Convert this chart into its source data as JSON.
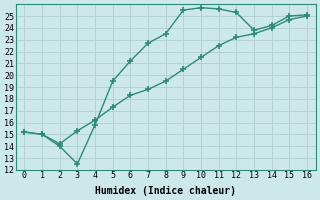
{
  "line1_x": [
    0,
    1,
    2,
    3,
    4,
    5,
    6,
    7,
    8,
    9,
    10,
    11,
    12,
    13,
    14,
    15,
    16
  ],
  "line1_y": [
    15.2,
    15.0,
    14.0,
    12.5,
    15.8,
    19.5,
    21.2,
    22.7,
    23.5,
    25.5,
    25.7,
    25.6,
    25.3,
    23.8,
    24.2,
    25.0,
    25.1
  ],
  "line2_x": [
    0,
    1,
    2,
    3,
    4,
    5,
    6,
    7,
    8,
    9,
    10,
    11,
    12,
    13,
    14,
    15,
    16
  ],
  "line2_y": [
    15.2,
    15.0,
    14.2,
    15.3,
    16.2,
    17.3,
    18.3,
    18.8,
    19.5,
    20.5,
    21.5,
    22.5,
    23.2,
    23.5,
    24.0,
    24.7,
    25.0
  ],
  "line_color": "#2e8b72",
  "bg_color": "#cce8e8",
  "grid_color": "#b0cece",
  "xlabel": "Humidex (Indice chaleur)",
  "xlim": [
    -0.5,
    16.5
  ],
  "ylim": [
    12,
    26
  ],
  "xticks": [
    0,
    1,
    2,
    3,
    4,
    5,
    6,
    7,
    8,
    9,
    10,
    11,
    12,
    13,
    14,
    15,
    16
  ],
  "yticks": [
    12,
    13,
    14,
    15,
    16,
    17,
    18,
    19,
    20,
    21,
    22,
    23,
    24,
    25
  ],
  "marker": "+",
  "markersize": 5,
  "markeredgewidth": 1.2,
  "linewidth": 1.0,
  "xlabel_fontsize": 7,
  "tick_fontsize": 6
}
